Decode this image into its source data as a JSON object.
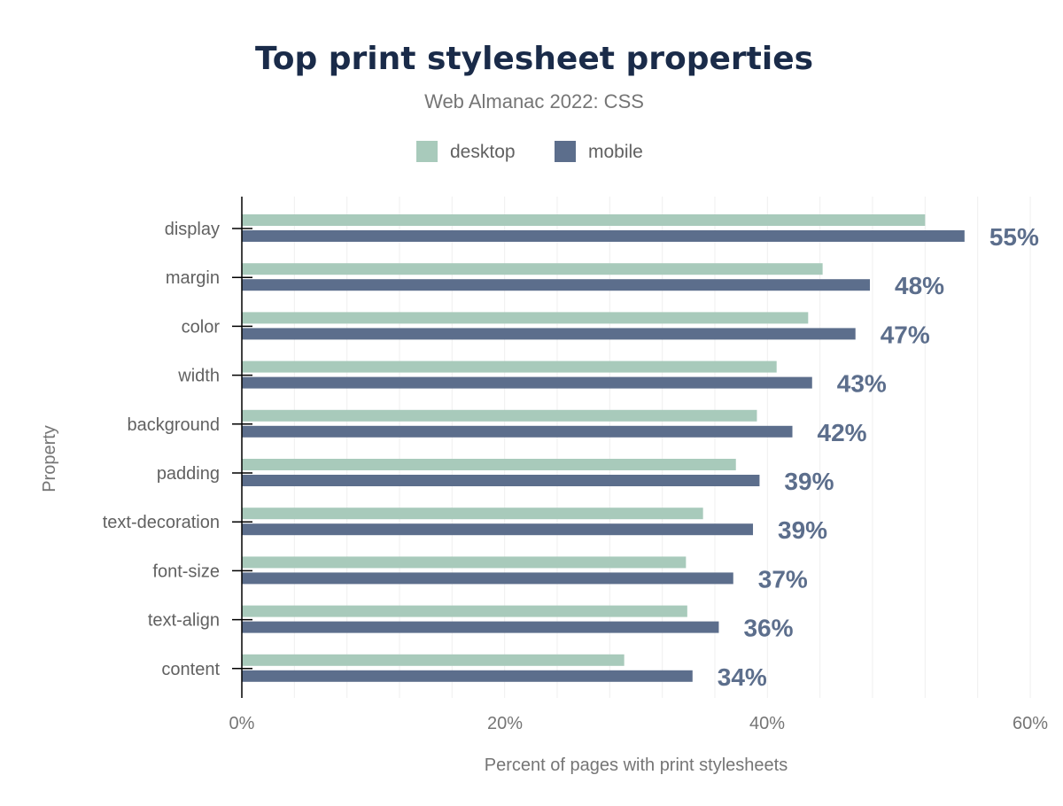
{
  "chart_data": {
    "type": "bar",
    "orientation": "horizontal",
    "title": "Top print stylesheet properties",
    "subtitle": "Web Almanac 2022: CSS",
    "xlabel": "Percent of pages with print stylesheets",
    "ylabel": "Property",
    "xlim": [
      0,
      60
    ],
    "xticks": [
      "0%",
      "20%",
      "40%",
      "60%"
    ],
    "grid": true,
    "legend_placement": "top",
    "categories": [
      "display",
      "margin",
      "color",
      "width",
      "background",
      "padding",
      "text-decoration",
      "font-size",
      "text-align",
      "content"
    ],
    "series": [
      {
        "name": "desktop",
        "color": "#a8cabb",
        "values": [
          52.0,
          44.2,
          43.1,
          40.7,
          39.2,
          37.6,
          35.1,
          33.8,
          33.9,
          29.1
        ]
      },
      {
        "name": "mobile",
        "color": "#5c6e8c",
        "values": [
          55.0,
          47.8,
          46.7,
          43.4,
          41.9,
          39.4,
          38.9,
          37.4,
          36.3,
          34.3
        ]
      }
    ],
    "data_labels": [
      "55%",
      "48%",
      "47%",
      "43%",
      "42%",
      "39%",
      "39%",
      "37%",
      "36%",
      "34%"
    ]
  }
}
